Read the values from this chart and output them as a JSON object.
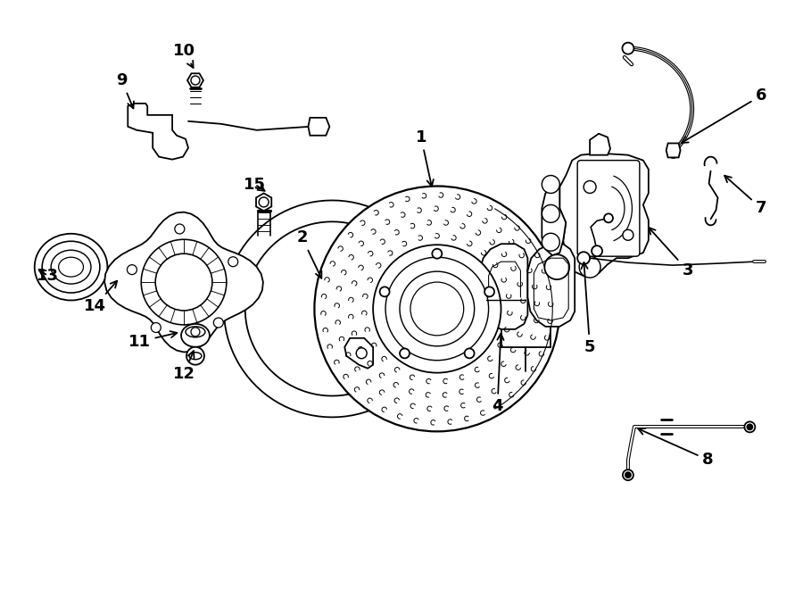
{
  "background_color": "#ffffff",
  "line_color": "#000000",
  "fig_width": 9.0,
  "fig_height": 6.61,
  "dpi": 100,
  "font_size": 13
}
